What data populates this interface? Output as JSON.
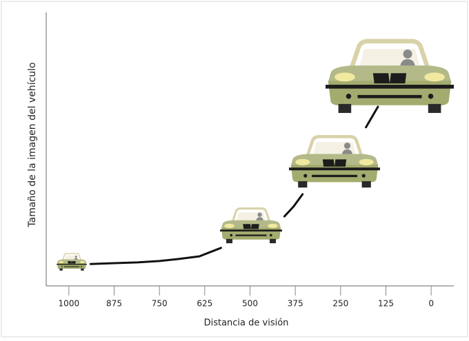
{
  "chart_data": {
    "type": "line",
    "x_label": "Distancia de visión",
    "y_label": "Tamaño de la imagen del vehículo",
    "xlim": [
      1062.5,
      -62.5
    ],
    "xticks": [
      1000,
      875,
      750,
      625,
      500,
      375,
      250,
      125,
      0
    ],
    "ylim": [
      0,
      100
    ],
    "series": [
      {
        "color": "#111111",
        "x": [
          940,
          875,
          810,
          750,
          700,
          640,
          580,
          480,
          405,
          380,
          355,
          300,
          180,
          147
        ],
        "values": [
          8,
          8.3,
          8.6,
          9.1,
          9.8,
          10.8,
          13.9,
          null,
          25.4,
          29,
          33.5,
          null,
          58,
          65.5
        ]
      }
    ]
  }
}
